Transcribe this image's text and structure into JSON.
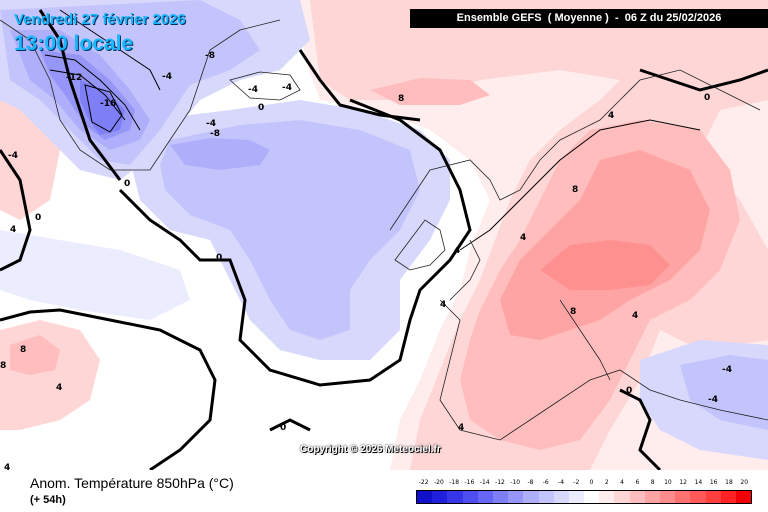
{
  "header": {
    "date": "Vendredi 27 février 2026",
    "time": "13:00 locale",
    "model": "Ensemble GEFS  ( Moyenne )  -  06 Z du 25/02/2026"
  },
  "copyright": "Copyright © 2026 Meteociel.fr",
  "footer": {
    "parameter": "Anom. Température 850hPa (°C)",
    "lead_time": "(+ 54h)"
  },
  "legend": {
    "labels": [
      "-22",
      "-20",
      "-18",
      "-16",
      "-14",
      "-12",
      "-10",
      "-8",
      "-6",
      "-4",
      "-2",
      "0",
      "2",
      "4",
      "6",
      "8",
      "10",
      "12",
      "14",
      "16",
      "18",
      "20"
    ],
    "colors": [
      "#1010c8",
      "#2020dc",
      "#3636e8",
      "#4e4ef0",
      "#6666f4",
      "#7e7ef6",
      "#9696f8",
      "#aeaefa",
      "#c4c4fc",
      "#d8d8fd",
      "#ececff",
      "#ffffff",
      "#ffecec",
      "#ffd6d6",
      "#ffbdbd",
      "#ffa4a4",
      "#ff8c8c",
      "#ff7272",
      "#ff5858",
      "#ff3e3e",
      "#ff2222",
      "#f00000"
    ]
  },
  "contour_labels": [
    "-16",
    "-12",
    "-8",
    "-8",
    "-4",
    "-4",
    "-4",
    "-4",
    "-4",
    "0",
    "0",
    "0",
    "0",
    "0",
    "0",
    "0",
    "4",
    "4",
    "4",
    "4",
    "4",
    "4",
    "4",
    "4",
    "4",
    "8",
    "8",
    "8",
    "8",
    "8",
    "-4",
    "-4"
  ],
  "colors": {
    "land_border": "#000000",
    "coastline": "#000000"
  }
}
